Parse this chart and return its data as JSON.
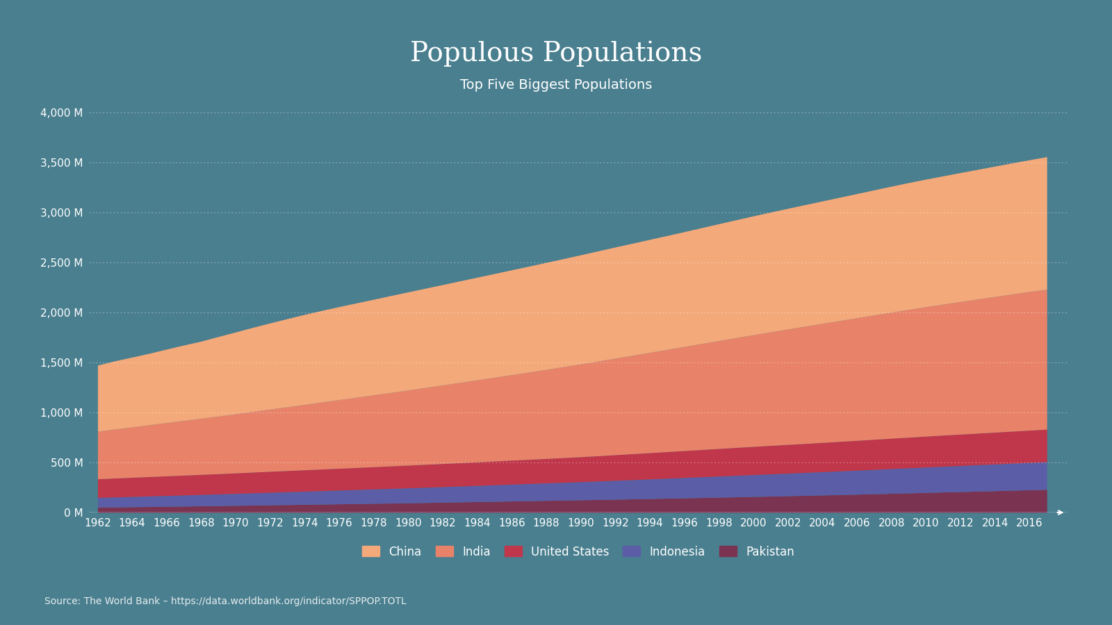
{
  "title": "Populous Populations",
  "subtitle": "Top Five Biggest Populations",
  "source": "Source: The World Bank – https://data.worldbank.org/indicator/SPPOP.TOTL",
  "background_color": "#4a7f8f",
  "years": [
    1962,
    1963,
    1964,
    1965,
    1966,
    1967,
    1968,
    1969,
    1970,
    1971,
    1972,
    1973,
    1974,
    1975,
    1976,
    1977,
    1978,
    1979,
    1980,
    1981,
    1982,
    1983,
    1984,
    1985,
    1986,
    1987,
    1988,
    1989,
    1990,
    1991,
    1992,
    1993,
    1994,
    1995,
    1996,
    1997,
    1998,
    1999,
    2000,
    2001,
    2002,
    2003,
    2004,
    2005,
    2006,
    2007,
    2008,
    2009,
    2010,
    2011,
    2012,
    2013,
    2014,
    2015,
    2016,
    2017
  ],
  "series": {
    "Pakistan": {
      "color": "#7b3352",
      "values": [
        52.41,
        54.47,
        56.6,
        58.8,
        61.05,
        63.35,
        65.71,
        68.12,
        70.59,
        73.09,
        75.62,
        78.17,
        80.74,
        83.31,
        85.87,
        88.43,
        90.98,
        93.53,
        96.18,
        99.01,
        101.98,
        105.04,
        108.13,
        111.2,
        114.23,
        117.22,
        120.17,
        123.08,
        126.0,
        128.98,
        132.06,
        135.26,
        138.58,
        141.97,
        145.43,
        148.93,
        152.45,
        155.97,
        159.51,
        163.08,
        166.71,
        170.43,
        174.25,
        178.19,
        182.26,
        186.46,
        190.77,
        195.17,
        199.6,
        204.01,
        208.42,
        212.84,
        217.28,
        221.74,
        226.23,
        230.77
      ]
    },
    "Indonesia": {
      "color": "#5b5ea6",
      "values": [
        97.09,
        99.8,
        102.55,
        105.3,
        108.08,
        110.89,
        113.73,
        116.6,
        119.51,
        122.46,
        125.43,
        128.42,
        131.42,
        134.42,
        137.41,
        140.4,
        143.39,
        146.37,
        149.37,
        152.4,
        155.47,
        158.58,
        161.73,
        164.91,
        168.12,
        171.37,
        174.65,
        177.96,
        181.41,
        184.94,
        188.55,
        192.22,
        195.94,
        199.68,
        203.44,
        207.19,
        210.91,
        214.61,
        218.27,
        221.91,
        225.55,
        229.19,
        232.82,
        236.43,
        240.02,
        243.57,
        247.06,
        250.5,
        253.88,
        257.21,
        260.49,
        263.73,
        266.92,
        270.05,
        273.12,
        276.14
      ]
    },
    "United States": {
      "color": "#c0364a",
      "values": [
        186.54,
        189.24,
        191.89,
        194.3,
        196.56,
        198.71,
        200.71,
        202.68,
        205.05,
        207.66,
        209.9,
        211.91,
        213.85,
        215.97,
        218.04,
        220.24,
        222.59,
        225.06,
        227.23,
        229.47,
        231.66,
        233.79,
        235.82,
        237.92,
        240.13,
        242.29,
        244.5,
        246.82,
        249.62,
        252.98,
        256.51,
        259.92,
        263.13,
        266.28,
        269.39,
        272.65,
        275.85,
        279.04,
        282.16,
        284.97,
        287.63,
        290.11,
        292.81,
        295.52,
        298.38,
        301.23,
        304.09,
        306.77,
        309.35,
        311.72,
        313.91,
        316.13,
        318.39,
        320.74,
        323.07,
        325.15
      ]
    },
    "India": {
      "color": "#e8836a",
      "values": [
        476.4,
        490.1,
        503.9,
        518.1,
        532.3,
        546.5,
        561.0,
        575.8,
        591.0,
        606.5,
        622.1,
        638.0,
        654.1,
        670.3,
        686.4,
        702.5,
        718.6,
        734.9,
        751.4,
        768.3,
        785.5,
        802.7,
        820.0,
        837.5,
        855.1,
        872.9,
        890.8,
        909.0,
        927.6,
        946.4,
        965.4,
        984.2,
        1003.0,
        1022.1,
        1041.2,
        1060.3,
        1079.3,
        1098.3,
        1117.1,
        1135.7,
        1154.2,
        1172.5,
        1190.6,
        1208.4,
        1226.0,
        1243.4,
        1260.6,
        1277.5,
        1294.1,
        1310.1,
        1326.0,
        1341.6,
        1356.9,
        1371.8,
        1386.3,
        1400.0
      ]
    },
    "China": {
      "color": "#f4a97a",
      "values": [
        660.33,
        682.34,
        698.36,
        715.19,
        735.4,
        754.55,
        771.53,
        796.03,
        818.32,
        841.11,
        861.92,
        881.94,
        900.35,
        916.4,
        930.69,
        943.46,
        956.17,
        969.01,
        981.23,
        993.0,
        1004.16,
        1015.41,
        1026.49,
        1037.61,
        1048.4,
        1059.52,
        1070.48,
        1081.26,
        1091.9,
        1102.08,
        1111.9,
        1120.43,
        1130.05,
        1139.06,
        1148.36,
        1158.46,
        1168.55,
        1178.58,
        1188.69,
        1198.0,
        1207.03,
        1215.8,
        1224.45,
        1233.11,
        1241.94,
        1250.81,
        1259.97,
        1268.72,
        1275.97,
        1282.84,
        1289.62,
        1296.38,
        1303.72,
        1311.0,
        1318.02,
        1325.0
      ]
    }
  },
  "series_order": [
    "Pakistan",
    "Indonesia",
    "United States",
    "India",
    "China"
  ],
  "legend_order": [
    "China",
    "India",
    "United States",
    "Indonesia",
    "Pakistan"
  ],
  "ylim": [
    0,
    4000
  ],
  "yticks": [
    0,
    500,
    1000,
    1500,
    2000,
    2500,
    3000,
    3500,
    4000
  ],
  "ytick_labels": [
    "0 M",
    "500 M",
    "1,000 M",
    "1,500 M",
    "2,000 M",
    "2,500 M",
    "3,000 M",
    "3,500 M",
    "4,000 M"
  ],
  "text_color": "#ffffff",
  "grid_color": "#ffffff",
  "title_fontsize": 28,
  "subtitle_fontsize": 14,
  "tick_fontsize": 11,
  "legend_fontsize": 12,
  "source_fontsize": 10
}
